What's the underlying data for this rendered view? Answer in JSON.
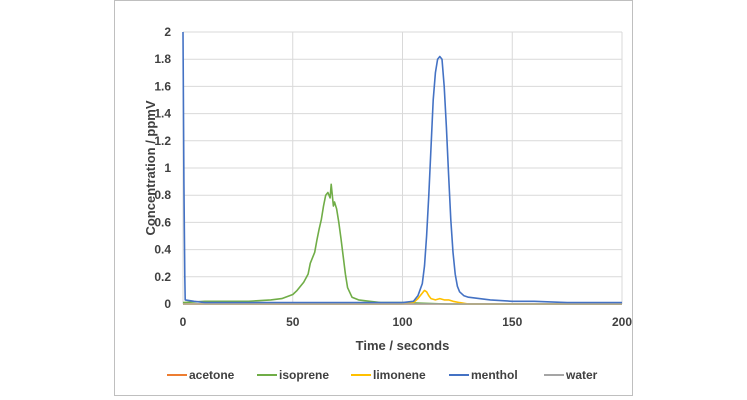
{
  "chart_data": {
    "type": "line",
    "title": "",
    "xlabel": "Time / seconds",
    "ylabel": "Concentration / ppmV",
    "xlim": [
      0,
      200
    ],
    "ylim": [
      0,
      2
    ],
    "x_ticks": [
      "0",
      "50",
      "100",
      "150",
      "200"
    ],
    "y_ticks": [
      "0",
      "0.2",
      "0.4",
      "0.6",
      "0.8",
      "1",
      "1.2",
      "1.4",
      "1.6",
      "1.8",
      "2"
    ],
    "grid": true,
    "legend_position": "bottom",
    "series": [
      {
        "name": "acetone",
        "color": "#ED7D31",
        "x": [
          0,
          50,
          100,
          150,
          200
        ],
        "y": [
          0,
          0,
          0,
          0,
          0
        ]
      },
      {
        "name": "isoprene",
        "color": "#70AD47",
        "x": [
          0,
          10,
          20,
          30,
          40,
          45,
          50,
          52,
          55,
          57,
          58,
          60,
          61,
          62,
          63,
          64,
          65,
          66,
          67,
          67.5,
          68,
          68.5,
          69,
          70,
          71,
          72,
          73,
          74,
          75,
          77,
          80,
          85,
          90,
          100,
          120,
          150,
          200
        ],
        "y": [
          0.01,
          0.02,
          0.02,
          0.02,
          0.03,
          0.04,
          0.07,
          0.1,
          0.16,
          0.22,
          0.3,
          0.38,
          0.47,
          0.55,
          0.62,
          0.72,
          0.8,
          0.82,
          0.78,
          0.88,
          0.8,
          0.72,
          0.75,
          0.7,
          0.6,
          0.48,
          0.35,
          0.22,
          0.12,
          0.05,
          0.03,
          0.02,
          0.01,
          0.01,
          0,
          0,
          0
        ]
      },
      {
        "name": "limonene",
        "color": "#FFC000",
        "x": [
          0,
          50,
          100,
          105,
          107,
          109,
          110,
          111,
          112,
          113,
          115,
          117,
          119,
          121,
          123,
          126,
          130,
          140,
          200
        ],
        "y": [
          0,
          0,
          0,
          0.01,
          0.04,
          0.08,
          0.1,
          0.09,
          0.06,
          0.04,
          0.03,
          0.04,
          0.03,
          0.03,
          0.02,
          0.01,
          0,
          0,
          0
        ]
      },
      {
        "name": "menthol",
        "color": "#4472C4",
        "x": [
          0,
          0.4,
          0.8,
          1,
          5,
          10,
          20,
          40,
          60,
          80,
          100,
          105,
          107,
          109,
          110,
          111,
          112,
          113,
          114,
          115,
          116,
          117,
          118,
          119,
          120,
          121,
          122,
          123,
          124,
          125,
          126,
          128,
          130,
          135,
          140,
          150,
          160,
          175,
          200
        ],
        "y": [
          2,
          0.9,
          0.2,
          0.03,
          0.02,
          0.01,
          0.01,
          0.01,
          0.01,
          0.01,
          0.01,
          0.02,
          0.06,
          0.15,
          0.28,
          0.5,
          0.8,
          1.15,
          1.5,
          1.7,
          1.8,
          1.82,
          1.8,
          1.6,
          1.3,
          0.95,
          0.62,
          0.38,
          0.22,
          0.13,
          0.09,
          0.06,
          0.05,
          0.04,
          0.03,
          0.02,
          0.02,
          0.01,
          0.01
        ]
      },
      {
        "name": "water",
        "color": "#A5A5A5",
        "x": [
          0,
          50,
          100,
          150,
          200
        ],
        "y": [
          0,
          0,
          0,
          0,
          0
        ]
      }
    ]
  }
}
